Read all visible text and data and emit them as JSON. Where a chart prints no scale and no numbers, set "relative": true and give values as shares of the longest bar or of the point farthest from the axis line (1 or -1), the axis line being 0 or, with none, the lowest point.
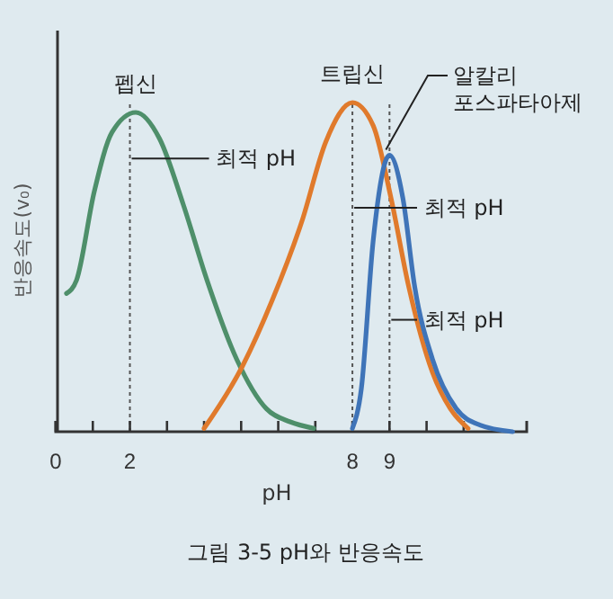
{
  "chart_data": {
    "type": "line",
    "relative": true,
    "title": "그림 3-5 pH와 반응속도",
    "xlabel": "pH",
    "ylabel": "반응속도(v₀)",
    "xlim": [
      0,
      12.7
    ],
    "xticks": [
      0,
      {
        "value": 1,
        "label": null
      },
      2,
      {
        "value": 3,
        "label": null
      },
      {
        "value": 4,
        "label": null
      },
      {
        "value": 5,
        "label": null
      },
      {
        "value": 6,
        "label": null
      },
      {
        "value": 7,
        "label": null
      },
      8,
      9,
      {
        "value": 10,
        "label": null
      },
      {
        "value": 11,
        "label": null
      }
    ],
    "series": [
      {
        "name": "펩신",
        "color": "#4e8f6a",
        "x": [
          0.29,
          0.56,
          1.04,
          1.52,
          2.16,
          2.8,
          3.44,
          4.08,
          4.88,
          5.68,
          6.32,
          6.96
        ],
        "values": [
          0.42,
          0.46,
          0.73,
          0.91,
          0.97,
          0.89,
          0.69,
          0.46,
          0.22,
          0.07,
          0.03,
          0.01
        ]
      },
      {
        "name": "트립신",
        "color": "#e07a2c",
        "x": [
          4.0,
          5.04,
          5.84,
          6.64,
          7.28,
          8.0,
          8.56,
          9.04,
          9.52,
          10.16,
          10.64,
          11.12
        ],
        "values": [
          0.01,
          0.2,
          0.4,
          0.64,
          0.88,
          1.0,
          0.93,
          0.71,
          0.44,
          0.18,
          0.07,
          0.01
        ]
      },
      {
        "name": "알칼리 포스파타아제",
        "color": "#3f74b8",
        "x": [
          8.0,
          8.24,
          8.56,
          9.0,
          9.36,
          9.68,
          10.16,
          10.8,
          11.44,
          12.32
        ],
        "values": [
          0.01,
          0.13,
          0.58,
          0.84,
          0.71,
          0.44,
          0.22,
          0.07,
          0.02,
          0
        ]
      }
    ],
    "ref_lines": [
      {
        "axis": "x",
        "value": 2,
        "line_style": "dotted",
        "color": "#555555"
      },
      {
        "axis": "x",
        "value": 8,
        "line_style": "dotted",
        "color": "#555555"
      },
      {
        "axis": "x",
        "value": 9,
        "line_style": "dotted",
        "color": "#555555"
      }
    ],
    "annotations": [
      {
        "text": "최적 pH",
        "x": 2,
        "y": 0.83
      },
      {
        "text": "최적 pH",
        "x": 8,
        "y": 0.68
      },
      {
        "text": "최적 pH",
        "x": 9,
        "y": 0.34
      }
    ],
    "marker": "none",
    "line_style": "solid"
  }
}
